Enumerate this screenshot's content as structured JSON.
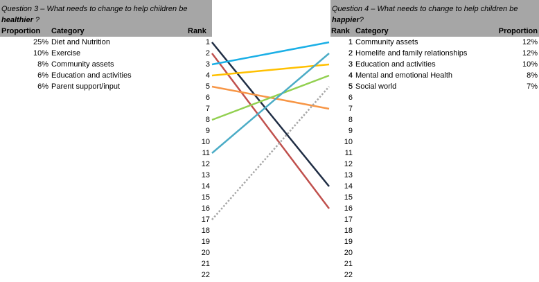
{
  "chart_data": {
    "type": "slope",
    "left_panel": {
      "question_prefix": "Question 3 – What needs to change to help children be",
      "question_em": "healthier",
      "question_suffix": " ?",
      "col_proportion": "Proportion",
      "col_category": "Category",
      "col_rank": "Rank",
      "rows": [
        {
          "proportion": "25%",
          "category": "Diet and Nutrition"
        },
        {
          "proportion": "10%",
          "category": "Exercise"
        },
        {
          "proportion": "8%",
          "category": "Community assets"
        },
        {
          "proportion": "6%",
          "category": "Education and activities"
        },
        {
          "proportion": "6%",
          "category": "Parent support/input"
        }
      ]
    },
    "right_panel": {
      "question_prefix": "Question 4 – What needs to change to help children be",
      "question_em": "happier",
      "question_suffix": "?",
      "col_rank": "Rank",
      "col_category": "Category",
      "col_proportion": "Proportion",
      "rows": [
        {
          "rank": "1",
          "category": "Community assets",
          "proportion": "12%"
        },
        {
          "rank": "2",
          "category": "Homelife and family relationships",
          "proportion": "12%"
        },
        {
          "rank": "3",
          "category": "Education and activities",
          "proportion": "10%"
        },
        {
          "rank": "4",
          "category": "Mental and emotional Health",
          "proportion": "8%"
        },
        {
          "rank": "5",
          "category": "Social world",
          "proportion": "7%"
        }
      ]
    },
    "ranks": [
      "1",
      "2",
      "3",
      "4",
      "5",
      "6",
      "7",
      "8",
      "9",
      "10",
      "11",
      "12",
      "13",
      "14",
      "15",
      "16",
      "17",
      "18",
      "19",
      "20",
      "21",
      "22"
    ],
    "lines": [
      {
        "left_rank": 1,
        "right_rank": 14,
        "color": "#1f2d44",
        "dashed": false
      },
      {
        "left_rank": 2,
        "right_rank": 16,
        "color": "#c0504d",
        "dashed": false
      },
      {
        "left_rank": 3,
        "right_rank": 1,
        "color": "#1aafe6",
        "dashed": false
      },
      {
        "left_rank": 4,
        "right_rank": 3,
        "color": "#ffc000",
        "dashed": false
      },
      {
        "left_rank": 5,
        "right_rank": 7,
        "color": "#f79646",
        "dashed": false
      },
      {
        "left_rank": 8,
        "right_rank": 4,
        "color": "#92d050",
        "dashed": false
      },
      {
        "left_rank": 11,
        "right_rank": 2,
        "color": "#4bacc6",
        "dashed": false
      },
      {
        "left_rank": 17,
        "right_rank": 5,
        "color": "#a6a6a6",
        "dashed": true
      }
    ]
  }
}
